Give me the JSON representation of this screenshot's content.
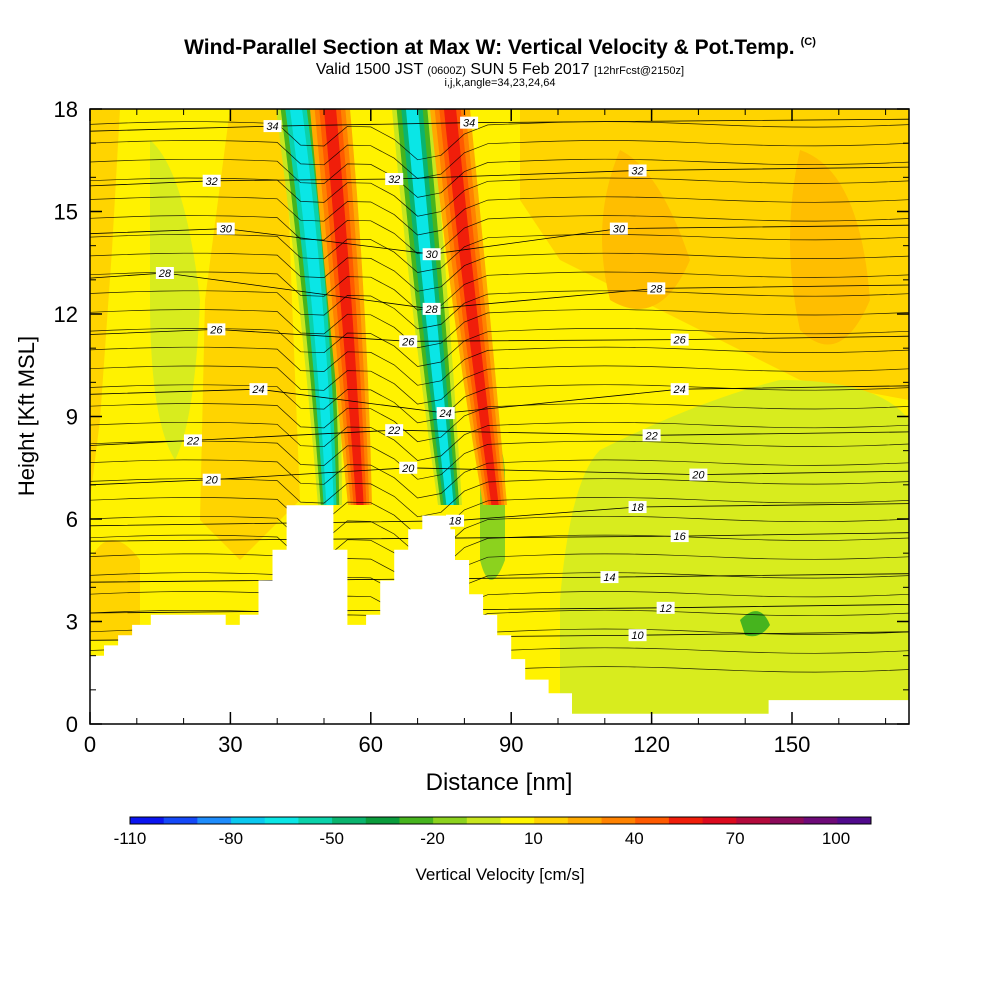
{
  "header": {
    "title": "Wind-Parallel Section at Max W: Vertical Velocity & Pot.Temp.",
    "copyright": "(C)",
    "valid_prefix": "Valid 1500 JST",
    "valid_zulu": "(0600Z)",
    "valid_date": "SUN 5 Feb 2017",
    "forecast_info": "[12hrFcst@2150z]",
    "indices": "i,j,k,angle=34,23,24,64"
  },
  "chart_data": {
    "type": "heatmap",
    "xlabel": "Distance [nm]",
    "ylabel": "Height [Kft MSL]",
    "xlim": [
      0,
      175
    ],
    "ylim": [
      0,
      18
    ],
    "x_ticks": [
      "0",
      "30",
      "60",
      "90",
      "120",
      "150"
    ],
    "y_ticks": [
      "0",
      "3",
      "6",
      "9",
      "12",
      "15",
      "18"
    ],
    "colorbar": {
      "label": "Vertical Velocity [cm/s]",
      "tick_labels": [
        "-110",
        "-80",
        "-50",
        "-20",
        "10",
        "40",
        "70",
        "100"
      ],
      "colors": [
        "#0a14f0",
        "#1448f8",
        "#1e8cfc",
        "#0ac8f0",
        "#0ae6e6",
        "#0ad2aa",
        "#0ab46e",
        "#0a9c3c",
        "#46b41e",
        "#8cd21e",
        "#c8e61e",
        "#fff500",
        "#ffd200",
        "#ffaa00",
        "#ff8200",
        "#ff5a00",
        "#f01e0a",
        "#dc0a1e",
        "#b40a3c",
        "#8c0a5a",
        "#6e0a78",
        "#500a8c"
      ]
    },
    "theta_contour_labels": [
      {
        "value": "34",
        "x": 39,
        "y": 17.5
      },
      {
        "value": "34",
        "x": 81,
        "y": 17.6
      },
      {
        "value": "32",
        "x": 26,
        "y": 15.9
      },
      {
        "value": "32",
        "x": 65,
        "y": 15.95
      },
      {
        "value": "32",
        "x": 117,
        "y": 16.2
      },
      {
        "value": "30",
        "x": 29,
        "y": 14.5
      },
      {
        "value": "30",
        "x": 73,
        "y": 13.75
      },
      {
        "value": "30",
        "x": 113,
        "y": 14.5
      },
      {
        "value": "28",
        "x": 16,
        "y": 13.2
      },
      {
        "value": "28",
        "x": 73,
        "y": 12.15
      },
      {
        "value": "28",
        "x": 121,
        "y": 12.75
      },
      {
        "value": "26",
        "x": 27,
        "y": 11.55
      },
      {
        "value": "26",
        "x": 68,
        "y": 11.2
      },
      {
        "value": "26",
        "x": 126,
        "y": 11.25
      },
      {
        "value": "24",
        "x": 36,
        "y": 9.8
      },
      {
        "value": "24",
        "x": 76,
        "y": 9.1
      },
      {
        "value": "24",
        "x": 126,
        "y": 9.8
      },
      {
        "value": "22",
        "x": 22,
        "y": 8.3
      },
      {
        "value": "22",
        "x": 65,
        "y": 8.6
      },
      {
        "value": "22",
        "x": 120,
        "y": 8.45
      },
      {
        "value": "20",
        "x": 26,
        "y": 7.15
      },
      {
        "value": "20",
        "x": 68,
        "y": 7.5
      },
      {
        "value": "20",
        "x": 130,
        "y": 7.3
      },
      {
        "value": "18",
        "x": 78,
        "y": 5.95
      },
      {
        "value": "18",
        "x": 117,
        "y": 6.35
      },
      {
        "value": "16",
        "x": 126,
        "y": 5.5
      },
      {
        "value": "14",
        "x": 111,
        "y": 4.3
      },
      {
        "value": "12",
        "x": 123,
        "y": 3.4
      },
      {
        "value": "10",
        "x": 117,
        "y": 2.6
      }
    ]
  }
}
